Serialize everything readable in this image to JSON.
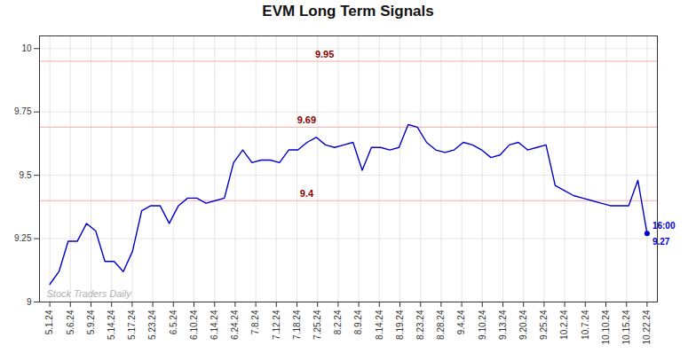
{
  "chart_data": {
    "type": "line",
    "title": "EVM Long Term Signals",
    "x": [
      0,
      0.446154,
      0.892308,
      1.338462,
      1.784615,
      2.230769,
      2.676923,
      3.123077,
      3.569231,
      4.015385,
      4.461538,
      4.907692,
      5.353846,
      5.8,
      6.246154,
      6.692308,
      7.138462,
      7.584615,
      8.030769,
      8.476923,
      8.923077,
      9.369231,
      9.815385,
      10.261538,
      10.707692,
      11.153846,
      11.6,
      12.046154,
      12.492308,
      12.938462,
      13.384615,
      13.830769,
      14.276923,
      14.723077,
      15.169231,
      15.615385,
      16.061538,
      16.507692,
      16.953846,
      17.4,
      17.846154,
      18.292308,
      18.738462,
      19.184615,
      19.630769,
      20.076923,
      20.523077,
      20.969231,
      21.415385,
      21.861538,
      22.307692,
      22.753846,
      23.2,
      23.646154,
      24.092308,
      24.538462,
      24.984615,
      25.430769,
      25.876923,
      26.323077,
      26.769231,
      27.215385,
      27.661538,
      28.107692,
      28.553846,
      29
    ],
    "values": [
      9.07,
      9.12,
      9.24,
      9.24,
      9.31,
      9.28,
      9.16,
      9.16,
      9.12,
      9.2,
      9.36,
      9.38,
      9.38,
      9.31,
      9.38,
      9.41,
      9.41,
      9.39,
      9.4,
      9.41,
      9.55,
      9.6,
      9.55,
      9.56,
      9.56,
      9.55,
      9.6,
      9.6,
      9.63,
      9.65,
      9.62,
      9.61,
      9.62,
      9.63,
      9.52,
      9.61,
      9.61,
      9.6,
      9.61,
      9.7,
      9.69,
      9.63,
      9.6,
      9.59,
      9.6,
      9.63,
      9.62,
      9.6,
      9.57,
      9.58,
      9.62,
      9.63,
      9.6,
      9.61,
      9.62,
      9.46,
      9.44,
      9.42,
      9.41,
      9.4,
      9.39,
      9.38,
      9.38,
      9.38,
      9.48,
      9.27
    ],
    "color": "#0000cc",
    "xlim": [
      -0.5,
      29.5
    ],
    "xticks": [
      {
        "value": 0,
        "label": "5.1.24"
      },
      {
        "value": 1,
        "label": "5.6.24"
      },
      {
        "value": 2,
        "label": "5.9.24"
      },
      {
        "value": 3,
        "label": "5.14.24"
      },
      {
        "value": 4,
        "label": "5.17.24"
      },
      {
        "value": 5,
        "label": "5.23.24"
      },
      {
        "value": 6,
        "label": "6.5.24"
      },
      {
        "value": 7,
        "label": "6.10.24"
      },
      {
        "value": 8,
        "label": "6.14.24"
      },
      {
        "value": 9,
        "label": "6.24.24"
      },
      {
        "value": 10,
        "label": "7.8.24"
      },
      {
        "value": 11,
        "label": "7.12.24"
      },
      {
        "value": 12,
        "label": "7.18.24"
      },
      {
        "value": 13,
        "label": "7.25.24"
      },
      {
        "value": 14,
        "label": "8.2.24"
      },
      {
        "value": 15,
        "label": "8.9.24"
      },
      {
        "value": 16,
        "label": "8.14.24"
      },
      {
        "value": 17,
        "label": "8.19.24"
      },
      {
        "value": 18,
        "label": "8.23.24"
      },
      {
        "value": 19,
        "label": "8.28.24"
      },
      {
        "value": 20,
        "label": "9.4.24"
      },
      {
        "value": 21,
        "label": "9.10.24"
      },
      {
        "value": 22,
        "label": "9.13.24"
      },
      {
        "value": 23,
        "label": "9.20.24"
      },
      {
        "value": 24,
        "label": "9.25.24"
      },
      {
        "value": 25,
        "label": "10.2.24"
      },
      {
        "value": 26,
        "label": "10.7.24"
      },
      {
        "value": 27,
        "label": "10.10.24"
      },
      {
        "value": 28,
        "label": "10.15.24"
      },
      {
        "value": 29,
        "label": "10.22.24"
      }
    ],
    "ylim": [
      9.0,
      10.05
    ],
    "yticks": [
      9.0,
      9.25,
      9.5,
      9.75,
      10.0
    ],
    "grid": true,
    "hlines": [
      {
        "y": 9.95,
        "label": "9.95",
        "label_color": "#8b0000",
        "color": "#f5aaaa"
      },
      {
        "y": 9.69,
        "label": "9.69",
        "label_color": "#8b0000",
        "color": "#f5aaaa"
      },
      {
        "y": 9.4,
        "label": "9.4",
        "label_color": "#8b0000",
        "color": "#f5aaaa"
      }
    ],
    "last_point": {
      "label": "16:00",
      "value": 9.27
    },
    "watermark": "Stock Traders Daily",
    "watermark_color": "#b0b0b0"
  }
}
